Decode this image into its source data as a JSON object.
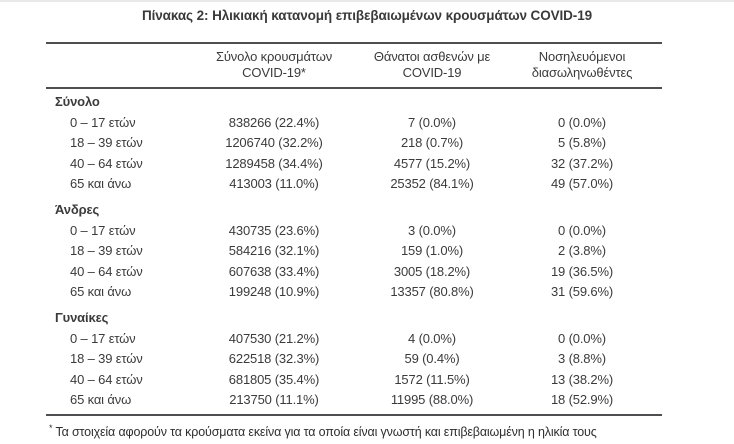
{
  "title": "Πίνακας 2: Ηλικιακή κατανομή επιβεβαιωμένων κρουσμάτων COVID-19",
  "table": {
    "columns": [
      {
        "line1": "Σύνολο κρουσμάτων",
        "line2": "COVID-19*"
      },
      {
        "line1": "Θάνατοι ασθενών με",
        "line2": "COVID-19"
      },
      {
        "line1": "Νοσηλευόμενοι",
        "line2": "διασωληνωθέντες"
      }
    ],
    "groups": [
      {
        "name": "Σύνολο",
        "rows": [
          {
            "label": "0 – 17 ετών",
            "cases": "838266 (22.4%)",
            "deaths": "7 (0.0%)",
            "intubated": "0 (0.0%)"
          },
          {
            "label": "18 – 39 ετών",
            "cases": "1206740 (32.2%)",
            "deaths": "218 (0.7%)",
            "intubated": "5 (5.8%)"
          },
          {
            "label": "40 – 64 ετών",
            "cases": "1289458 (34.4%)",
            "deaths": "4577 (15.2%)",
            "intubated": "32 (37.2%)"
          },
          {
            "label": "65 και άνω",
            "cases": "413003 (11.0%)",
            "deaths": "25352 (84.1%)",
            "intubated": "49 (57.0%)"
          }
        ]
      },
      {
        "name": "Άνδρες",
        "rows": [
          {
            "label": "0 – 17 ετών",
            "cases": "430735 (23.6%)",
            "deaths": "3 (0.0%)",
            "intubated": "0 (0.0%)"
          },
          {
            "label": "18 – 39 ετών",
            "cases": "584216 (32.1%)",
            "deaths": "159 (1.0%)",
            "intubated": "2 (3.8%)"
          },
          {
            "label": "40 – 64 ετών",
            "cases": "607638 (33.4%)",
            "deaths": "3005 (18.2%)",
            "intubated": "19 (36.5%)"
          },
          {
            "label": "65 και άνω",
            "cases": "199248 (10.9%)",
            "deaths": "13357 (80.8%)",
            "intubated": "31 (59.6%)"
          }
        ]
      },
      {
        "name": "Γυναίκες",
        "rows": [
          {
            "label": "0 – 17 ετών",
            "cases": "407530 (21.2%)",
            "deaths": "4 (0.0%)",
            "intubated": "0 (0.0%)"
          },
          {
            "label": "18 – 39 ετών",
            "cases": "622518 (32.3%)",
            "deaths": "59 (0.4%)",
            "intubated": "3 (8.8%)"
          },
          {
            "label": "40 – 64 ετών",
            "cases": "681805 (35.4%)",
            "deaths": "1572 (11.5%)",
            "intubated": "13 (38.2%)"
          },
          {
            "label": "65 και άνω",
            "cases": "213750 (11.1%)",
            "deaths": "11995 (88.0%)",
            "intubated": "18 (52.9%)"
          }
        ]
      }
    ],
    "footnote_marker": "*",
    "footnote": "Τα στοιχεία αφορούν τα κρούσματα εκείνα για τα οποία είναι γνωστή και επιβεβαιωμένη η ηλικία τους"
  }
}
